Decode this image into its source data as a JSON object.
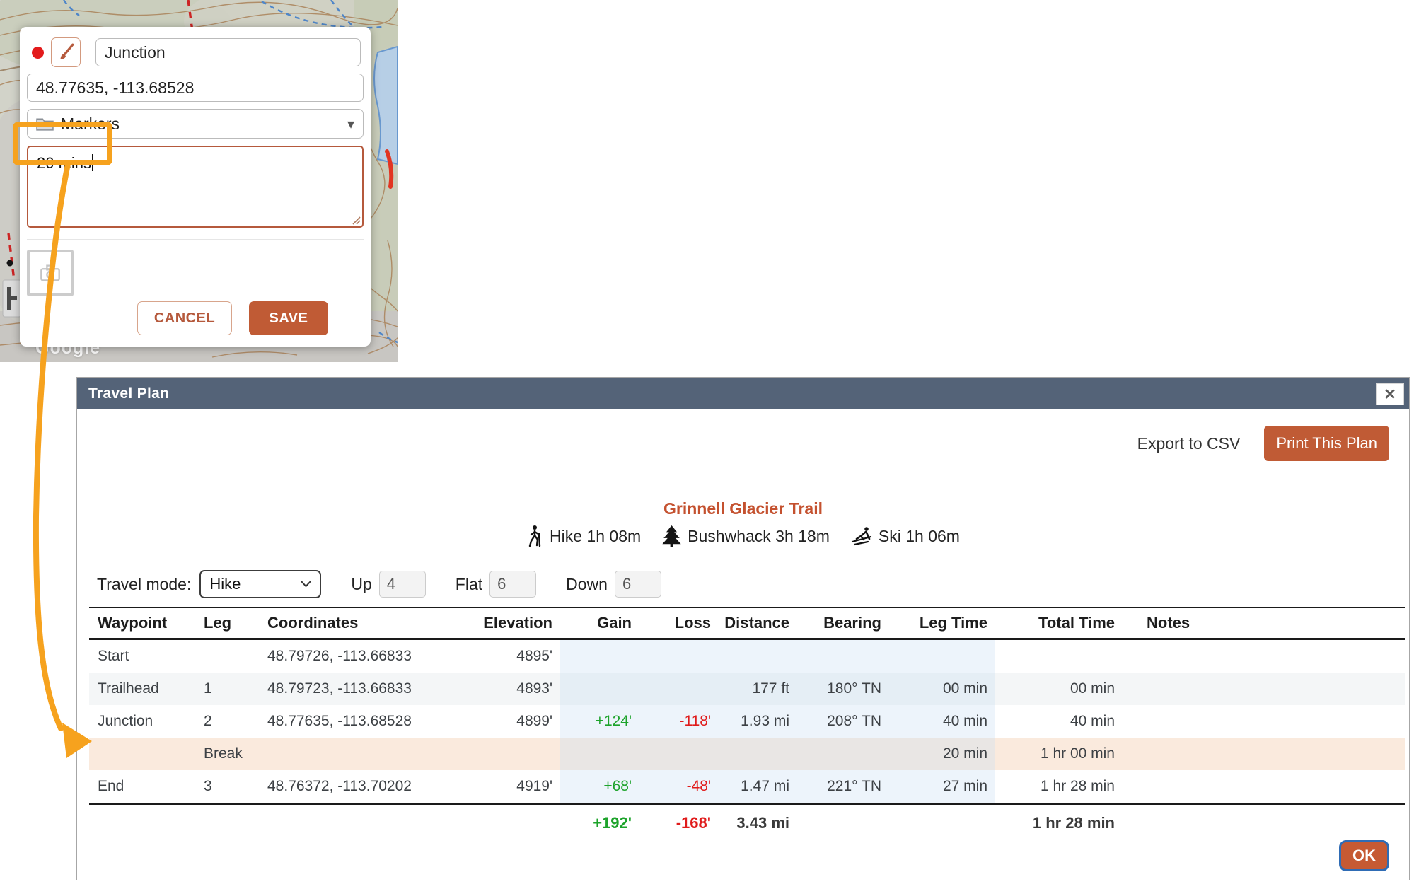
{
  "map": {
    "watermark": "Google"
  },
  "marker_popup": {
    "name_value": "Junction",
    "coords_value": "48.77635, -113.68528",
    "folder_value": "Markers",
    "comment_value": "20 mins",
    "cancel_label": "CANCEL",
    "save_label": "SAVE"
  },
  "annotation": {
    "color": "#f6a21e"
  },
  "travel_plan": {
    "title": "Travel Plan",
    "close_label": "×",
    "export_label": "Export to CSV",
    "print_label": "Print This Plan",
    "trail_title": "Grinnell Glacier Trail",
    "modes": [
      {
        "icon": "hike-icon",
        "label": "Hike 1h 08m"
      },
      {
        "icon": "tree-icon",
        "label": "Bushwhack 3h 18m"
      },
      {
        "icon": "ski-icon",
        "label": "Ski 1h 06m"
      }
    ],
    "travel_mode_label": "Travel mode:",
    "travel_mode_value": "Hike",
    "up_label": "Up",
    "up_value": "4",
    "flat_label": "Flat",
    "flat_value": "6",
    "down_label": "Down",
    "down_value": "6",
    "table": {
      "columns": [
        "Waypoint",
        "Leg",
        "Coordinates",
        "Elevation",
        "Gain",
        "Loss",
        "Distance",
        "Bearing",
        "Leg Time",
        "Total Time",
        "Notes"
      ],
      "rows": [
        {
          "waypoint": "Start",
          "leg": "",
          "coordinates": "48.79726, -113.66833",
          "elevation": "4895'",
          "gain": "",
          "loss": "",
          "distance": "",
          "bearing": "",
          "leg_time": "",
          "total_time": "",
          "notes": "",
          "variant": ""
        },
        {
          "waypoint": "Trailhead",
          "leg": "1",
          "coordinates": "48.79723, -113.66833",
          "elevation": "4893'",
          "gain": "",
          "loss": "",
          "distance": "177 ft",
          "bearing": "180° TN",
          "leg_time": "00 min",
          "total_time": "00 min",
          "notes": "",
          "variant": "stripe"
        },
        {
          "waypoint": "Junction",
          "leg": "2",
          "coordinates": "48.77635, -113.68528",
          "elevation": "4899'",
          "gain": "+124'",
          "loss": "-118'",
          "distance": "1.93 mi",
          "bearing": "208° TN",
          "leg_time": "40 min",
          "total_time": "40 min",
          "notes": "",
          "variant": ""
        },
        {
          "waypoint": "",
          "leg": "Break",
          "coordinates": "",
          "elevation": "",
          "gain": "",
          "loss": "",
          "distance": "",
          "bearing": "",
          "leg_time": "20 min",
          "total_time": "1 hr 00 min",
          "notes": "",
          "variant": "break"
        },
        {
          "waypoint": "End",
          "leg": "3",
          "coordinates": "48.76372, -113.70202",
          "elevation": "4919'",
          "gain": "+68'",
          "loss": "-48'",
          "distance": "1.47 mi",
          "bearing": "221° TN",
          "leg_time": "27 min",
          "total_time": "1 hr 28 min",
          "notes": "",
          "variant": ""
        }
      ],
      "totals": {
        "gain": "+192'",
        "loss": "-168'",
        "distance": "3.43 mi",
        "total_time": "1 hr 28 min"
      }
    },
    "ok_label": "OK"
  }
}
